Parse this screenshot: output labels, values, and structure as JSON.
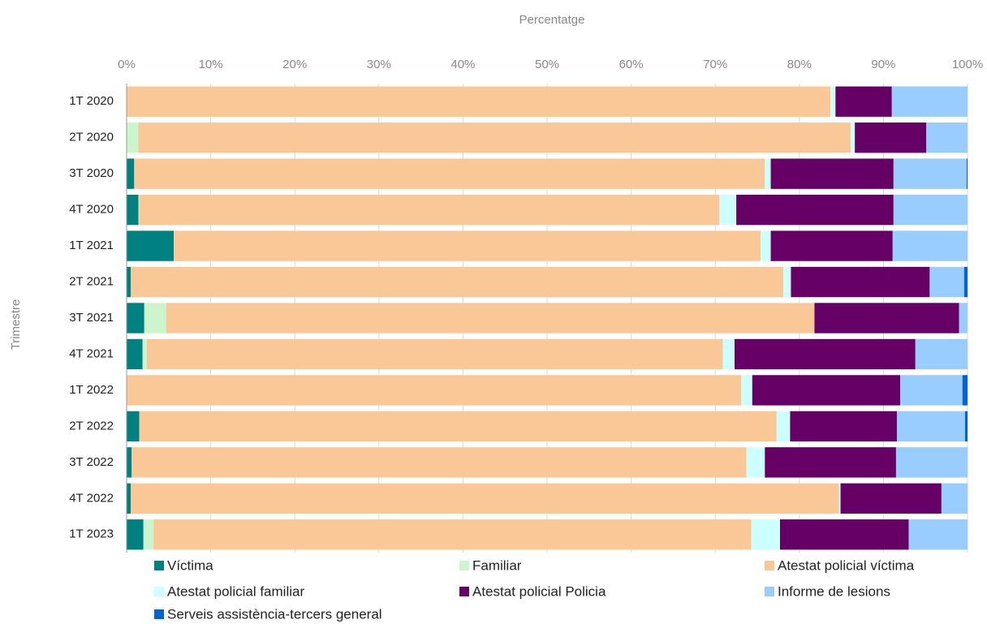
{
  "chart_data": {
    "type": "stacked-bar-horizontal",
    "title": "Percentatge",
    "y_label": "Trimestre",
    "categories": [
      "1T 2020",
      "2T 2020",
      "3T 2020",
      "4T 2020",
      "1T 2021",
      "2T 2021",
      "3T 2021",
      "4T 2021",
      "1T 2022",
      "2T 2022",
      "3T 2022",
      "4T 2022",
      "1T 2023"
    ],
    "series": [
      {
        "name": "Víctima",
        "color": "#008080",
        "values": [
          0,
          0,
          0.9,
          1.4,
          5.6,
          0.5,
          2.1,
          1.9,
          0,
          1.5,
          0.6,
          0.5,
          2.0
        ]
      },
      {
        "name": "Familiar",
        "color": "#ccf5cc",
        "values": [
          0,
          1.4,
          0,
          0.1,
          0,
          0,
          2.6,
          0.5,
          0,
          0,
          0,
          0,
          1.2
        ]
      },
      {
        "name": "Atestat policial víctima",
        "color": "#fac896",
        "values": [
          83.7,
          84.7,
          75.0,
          69.0,
          69.8,
          77.6,
          77.1,
          68.5,
          73.1,
          75.8,
          73.1,
          84.2,
          71.1
        ]
      },
      {
        "name": "Atestat policial familiar",
        "color": "#ccffff",
        "values": [
          0.6,
          0.5,
          0.7,
          2.0,
          1.2,
          0.9,
          0,
          1.4,
          1.3,
          1.6,
          2.2,
          0.2,
          3.4
        ]
      },
      {
        "name": "Atestat policial Policia",
        "color": "#660066",
        "values": [
          6.7,
          8.5,
          14.6,
          18.7,
          14.5,
          16.5,
          17.2,
          21.5,
          17.6,
          12.7,
          15.6,
          12.0,
          15.3
        ]
      },
      {
        "name": "Informe de lesions",
        "color": "#99ccff",
        "values": [
          9.0,
          4.9,
          8.7,
          8.8,
          8.9,
          4.1,
          1.0,
          6.2,
          7.4,
          8.1,
          8.5,
          3.1,
          7.0
        ]
      },
      {
        "name": "Serveis assistència-tercers general",
        "color": "#0066cc",
        "values": [
          0,
          0,
          0.1,
          0,
          0,
          0.4,
          0,
          0,
          0.6,
          0.3,
          0,
          0,
          0
        ]
      }
    ],
    "xlim": [
      0,
      100
    ],
    "xticks": [
      {
        "value": 0,
        "label": "0%"
      },
      {
        "value": 10,
        "label": "10%"
      },
      {
        "value": 20,
        "label": "20%"
      },
      {
        "value": 30,
        "label": "30%"
      },
      {
        "value": 40,
        "label": "40%"
      },
      {
        "value": 50,
        "label": "50%"
      },
      {
        "value": 60,
        "label": "60%"
      },
      {
        "value": 70,
        "label": "70%"
      },
      {
        "value": 80,
        "label": "80%"
      },
      {
        "value": 90,
        "label": "90%"
      },
      {
        "value": 100,
        "label": "100%"
      }
    ],
    "grid": true,
    "legend": "bottom"
  }
}
